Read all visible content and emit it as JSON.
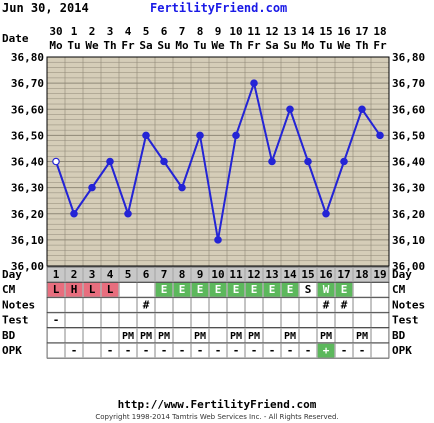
{
  "header": {
    "date": "Jun 30, 2014",
    "site": "FertilityFriend.com"
  },
  "footer": {
    "url": "http://www.FertilityFriend.com",
    "copyright": "Copyright 1998-2014 Tamtris Web Services Inc. - All Rights Reserved."
  },
  "labels": {
    "date": "Date",
    "day": "Day",
    "cm": "CM",
    "notes": "Notes",
    "test": "Test",
    "bd": "BD",
    "opk": "OPK"
  },
  "colors": {
    "grid_bg": "#d5cdb8",
    "grid_line": "#8f8877",
    "line": "#2424d6",
    "cm_red": "#e86e7e",
    "cm_green": "#5cb85c",
    "day_gray": "#c8c8c8",
    "opk_green": "#5cb85c"
  },
  "chart_data": {
    "type": "line",
    "title": "",
    "xlabel": "Day",
    "ylabel": "",
    "ylim": [
      36.0,
      36.8
    ],
    "y_ticks": [
      "36,80",
      "36,70",
      "36,60",
      "36,50",
      "36,40",
      "36,30",
      "36,20",
      "36,10",
      "36,00"
    ],
    "grid": true,
    "dates": [
      "30",
      "1",
      "2",
      "3",
      "4",
      "5",
      "6",
      "7",
      "8",
      "9",
      "10",
      "11",
      "12",
      "13",
      "14",
      "15",
      "16",
      "17",
      "18"
    ],
    "weekdays": [
      "Mo",
      "Tu",
      "We",
      "Th",
      "Fr",
      "Sa",
      "Su",
      "Mo",
      "Tu",
      "We",
      "Th",
      "Fr",
      "Sa",
      "Su",
      "Mo",
      "Tu",
      "We",
      "Th",
      "Fr"
    ],
    "days": [
      "1",
      "2",
      "3",
      "4",
      "5",
      "6",
      "7",
      "8",
      "9",
      "10",
      "11",
      "12",
      "13",
      "14",
      "15",
      "16",
      "17",
      "18",
      "19"
    ],
    "values": [
      36.4,
      36.2,
      36.3,
      36.4,
      36.2,
      36.5,
      36.4,
      36.3,
      36.5,
      36.1,
      36.5,
      36.7,
      36.4,
      36.6,
      36.4,
      36.2,
      36.4,
      36.6,
      36.5
    ],
    "open_points": [
      0
    ]
  },
  "rows": {
    "cm": [
      "L",
      "H",
      "L",
      "L",
      "",
      "",
      "E",
      "E",
      "E",
      "E",
      "E",
      "E",
      "E",
      "E",
      "S",
      "W",
      "E",
      "",
      ""
    ],
    "cm_colors": [
      "red",
      "red",
      "red",
      "red",
      "",
      "",
      "green",
      "green",
      "green",
      "green",
      "green",
      "green",
      "green",
      "green",
      "",
      "green",
      "green",
      "",
      ""
    ],
    "notes": [
      "",
      "",
      "",
      "",
      "",
      "#",
      "",
      "",
      "",
      "",
      "",
      "",
      "",
      "",
      "",
      "#",
      "#",
      "",
      ""
    ],
    "test": [
      "-",
      "",
      "",
      "",
      "",
      "",
      "",
      "",
      "",
      "",
      "",
      "",
      "",
      "",
      "",
      "",
      "",
      "",
      ""
    ],
    "bd": [
      "",
      "",
      "",
      "",
      "PM",
      "PM",
      "PM",
      "",
      "PM",
      "",
      "PM",
      "PM",
      "",
      "PM",
      "",
      "PM",
      "",
      "PM",
      ""
    ],
    "opk": [
      "",
      "-",
      "",
      "-",
      "-",
      "-",
      "-",
      "-",
      "-",
      "-",
      "-",
      "-",
      "-",
      "-",
      "-",
      "+",
      "-",
      "-",
      ""
    ],
    "opk_colors": [
      "",
      "",
      "",
      "",
      "",
      "",
      "",
      "",
      "",
      "",
      "",
      "",
      "",
      "",
      "",
      "green",
      "",
      "",
      ""
    ]
  }
}
